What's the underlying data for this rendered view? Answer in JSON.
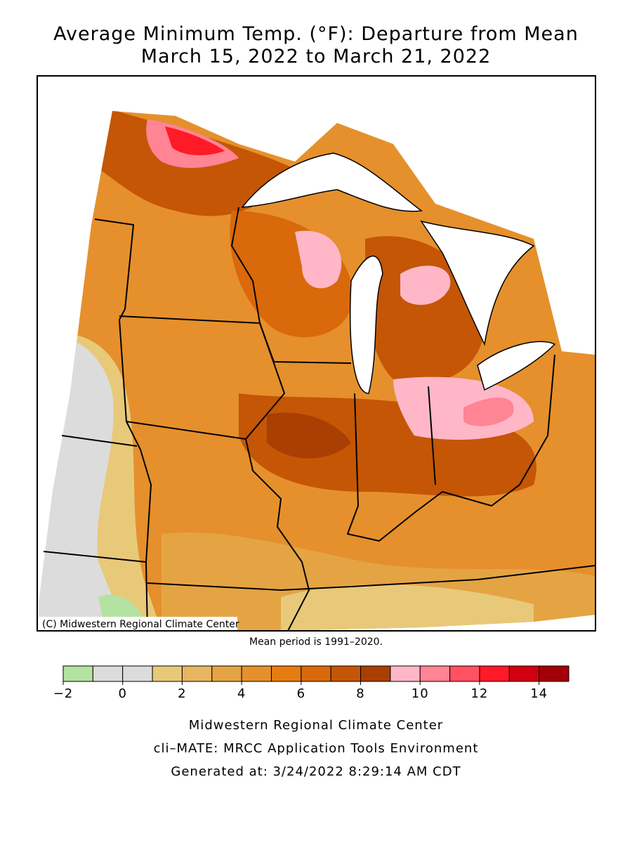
{
  "title": [
    "Average Minimum Temp. (°F): Departure from Mean",
    "March 15, 2022 to March 21, 2022"
  ],
  "copyright": "(C) Midwestern Regional Climate Center",
  "mean_period": "Mean period is 1991–2020.",
  "legend": {
    "bins": [
      -2,
      -1,
      0,
      1,
      2,
      3,
      4,
      5,
      6,
      7,
      8,
      9,
      10,
      11,
      12,
      13,
      14,
      15
    ],
    "colors": [
      "#b4e2a0",
      "#dcdcdc",
      "#dcdcdc",
      "#e8c97a",
      "#e6b660",
      "#e4a444",
      "#e5902c",
      "#e67c12",
      "#d9690a",
      "#c45606",
      "#a93f03",
      "#ffb7c8",
      "#ff8494",
      "#ff5262",
      "#ff1a28",
      "#d20010",
      "#a30008"
    ],
    "ticks": [
      {
        "value": -2,
        "label": "−2"
      },
      0,
      2,
      4,
      6,
      8,
      10,
      12,
      14
    ]
  },
  "footer": [
    "Midwestern Regional Climate Center",
    "cli–MATE: MRCC Application Tools Environment",
    "Generated at: 3/24/2022 8:29:14 AM CDT"
  ]
}
